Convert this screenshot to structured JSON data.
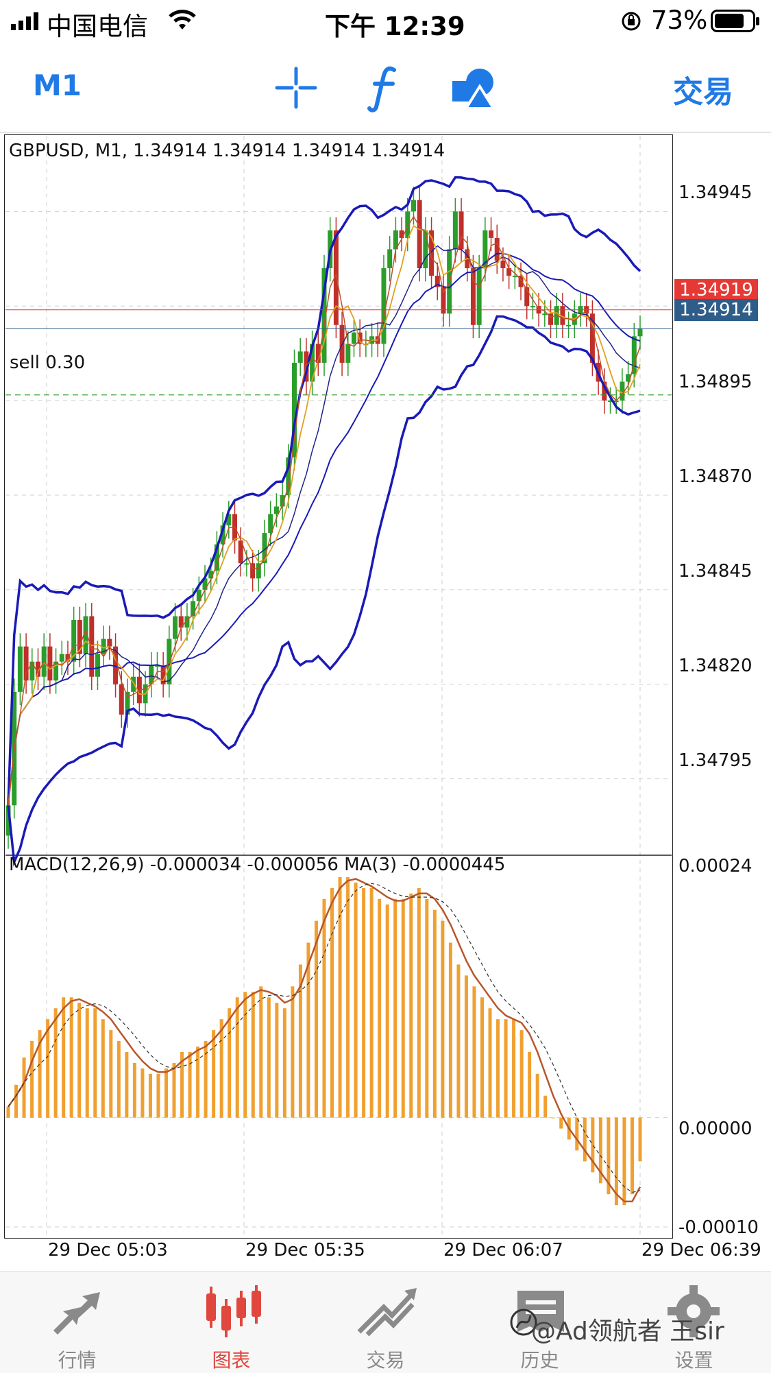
{
  "status_bar": {
    "carrier": "中国电信",
    "time": "下午 12:39",
    "battery": "73%"
  },
  "toolbar": {
    "timeframe": "M1",
    "trade_label": "交易"
  },
  "chart": {
    "title": "GBPUSD, M1, 1.34914 1.34914 1.34914 1.34914",
    "order_label": "sell 0.30",
    "ask_price": "1.34919",
    "bid_price": "1.34914",
    "price_ticks": [
      "1.34945",
      "1.34895",
      "1.34870",
      "1.34845",
      "1.34820",
      "1.34795"
    ],
    "macd_title": "MACD(12,26,9) -0.000034 -0.000056 MA(3) -0.0000445",
    "macd_ticks": [
      "0.00024",
      "0.00000",
      "-0.00010"
    ],
    "time_ticks": [
      "29 Dec 05:03",
      "29 Dec 05:35",
      "29 Dec 06:07",
      "29 Dec 06:39"
    ],
    "colors": {
      "bull": "#2a9d2a",
      "bear": "#c0302a",
      "band": "#1a1ab8",
      "histogram": "#f0a030",
      "ask": "#e53935",
      "bid": "#2f5d8a"
    }
  },
  "chart_data": {
    "type": "candlestick",
    "symbol": "GBPUSD",
    "timeframe": "M1",
    "ylim": [
      1.34775,
      1.34965
    ],
    "close": [
      1.34788,
      1.34818,
      1.3483,
      1.34821,
      1.34826,
      1.34822,
      1.3483,
      1.34821,
      1.34826,
      1.34828,
      1.34826,
      1.34837,
      1.34828,
      1.34838,
      1.34822,
      1.34828,
      1.34832,
      1.3483,
      1.3482,
      1.34812,
      1.34818,
      1.34822,
      1.34815,
      1.3482,
      1.34825,
      1.34825,
      1.3482,
      1.34832,
      1.34838,
      1.34835,
      1.34838,
      1.34842,
      1.34845,
      1.34848,
      1.3485,
      1.34857,
      1.34862,
      1.34865,
      1.34858,
      1.34852,
      1.34852,
      1.34848,
      1.34852,
      1.3486,
      1.34865,
      1.34867,
      1.3487,
      1.3488,
      1.34905,
      1.34908,
      1.349,
      1.3491,
      1.34905,
      1.3493,
      1.3494,
      1.34915,
      1.34905,
      1.3491,
      1.34913,
      1.3491,
      1.3491,
      1.34912,
      1.3491,
      1.3493,
      1.34935,
      1.3494,
      1.34938,
      1.34945,
      1.34948,
      1.3493,
      1.3494,
      1.34928,
      1.34925,
      1.34918,
      1.34935,
      1.34945,
      1.34935,
      1.3493,
      1.34915,
      1.3493,
      1.3494,
      1.34938,
      1.34932,
      1.3493,
      1.34928,
      1.34928,
      1.34925,
      1.3492,
      1.3492,
      1.34918,
      1.34918,
      1.34915,
      1.3492,
      1.34915,
      1.34915,
      1.34918,
      1.3492,
      1.34918,
      1.34905,
      1.349,
      1.34895,
      1.34895,
      1.34895,
      1.349,
      1.34902,
      1.34912,
      1.34914
    ],
    "macd_ylim": [
      -0.00011,
      0.00024
    ],
    "macd_histogram": [
      1e-05,
      3e-05,
      5.5e-05,
      7e-05,
      8e-05,
      9e-05,
      0.0001,
      0.00011,
      0.00011,
      0.000105,
      0.0001,
      0.0001,
      9e-05,
      8e-05,
      7e-05,
      6e-05,
      5e-05,
      4.5e-05,
      4e-05,
      4e-05,
      4.5e-05,
      5e-05,
      6e-05,
      6e-05,
      6.5e-05,
      7e-05,
      8e-05,
      9e-05,
      0.0001,
      0.00011,
      0.000115,
      0.000115,
      0.00012,
      0.00011,
      0.000105,
      0.0001,
      0.00012,
      0.00014,
      0.00016,
      0.00018,
      0.0002,
      0.00021,
      0.00022,
      0.00022,
      0.000215,
      0.00021,
      0.00021,
      0.0002,
      0.000195,
      0.0002,
      0.0002,
      0.000205,
      0.00021,
      0.0002,
      0.00019,
      0.00018,
      0.00016,
      0.00014,
      0.00013,
      0.00012,
      0.00011,
      0.0001,
      9e-05,
      9e-05,
      9e-05,
      8e-05,
      6e-05,
      4e-05,
      2e-05,
      0.0,
      -1e-05,
      -2e-05,
      -3e-05,
      -4e-05,
      -5e-05,
      -6e-05,
      -7e-05,
      -8e-05,
      -8e-05,
      -7e-05,
      -4e-05
    ],
    "macd_line_last": -3.4e-05,
    "signal_last": -5.6e-05,
    "ma3_last": -4.45e-05
  },
  "tab_bar": {
    "tabs": [
      {
        "label": "行情",
        "icon": "quotes-icon"
      },
      {
        "label": "图表",
        "icon": "chart-icon"
      },
      {
        "label": "交易",
        "icon": "trade-icon"
      },
      {
        "label": "历史",
        "icon": "history-icon"
      },
      {
        "label": "设置",
        "icon": "settings-icon"
      }
    ],
    "active": 1
  },
  "watermark": "@Ad领航者 王sir"
}
